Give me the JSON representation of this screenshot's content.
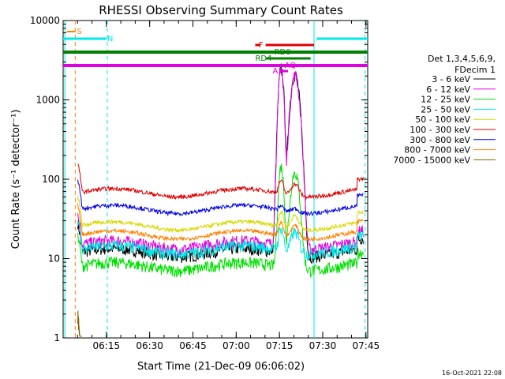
{
  "chart_data": {
    "type": "line",
    "title": "RHESSI Observing Summary Count Rates",
    "xlabel": "Start Time (21-Dec-09 06:06:02)",
    "ylabel": "Count Rate (s⁻¹ detector⁻¹)",
    "yscale": "log",
    "ylim": [
      1,
      10000
    ],
    "xlim_minutes": [
      6.0,
      7.76
    ],
    "x_ticks": [
      "06:15",
      "06:30",
      "06:45",
      "07:00",
      "07:15",
      "07:30",
      "07:45"
    ],
    "y_ticks": [
      "1",
      "10",
      "100",
      "1000",
      "10000"
    ],
    "legend_title": [
      "Det 1,3,4,5,6,9,",
      "FDecim 1"
    ],
    "legend_position": "right",
    "footer": "16-Oct-2021 22:08",
    "series": [
      {
        "name": "3 - 6 keV",
        "color": "#000000",
        "level": 12,
        "flare_peak": 2600
      },
      {
        "name": "6 - 12 keV",
        "color": "#e000e0",
        "level": 15,
        "flare_peak": 2500
      },
      {
        "name": "12 - 25 keV",
        "color": "#00e000",
        "level": 8,
        "flare_peak": 150
      },
      {
        "name": "25 - 50 keV",
        "color": "#00e8e8",
        "level": 13,
        "flare_peak": 25
      },
      {
        "name": "50 - 100 keV",
        "color": "#d8d800",
        "level": 26,
        "flare_peak": 40
      },
      {
        "name": "100 - 300 keV",
        "color": "#e00000",
        "level": 68,
        "flare_peak": 100
      },
      {
        "name": "300 - 800 keV",
        "color": "#0000e0",
        "level": 42,
        "flare_peak": 48
      },
      {
        "name": "800 - 7000 keV",
        "color": "#ff8000",
        "level": 20,
        "flare_peak": 30
      },
      {
        "name": "7000 - 15000 keV",
        "color": "#806000",
        "level": 1.8,
        "flare_peak": 1.8
      }
    ],
    "flag_bars": [
      {
        "label": "S",
        "color": "#ff8000",
        "y_row": 1
      },
      {
        "label": "N",
        "color": "#00e8e8",
        "y_row": 2
      },
      {
        "label": "F",
        "color": "#e00000",
        "y_row": 3
      },
      {
        "label": "RD0",
        "color": "#008000",
        "y_row": 4
      },
      {
        "label": "RD4",
        "color": "#008000",
        "y_row": 5
      },
      {
        "label": "AQ",
        "color": "#e000e0",
        "y_row": 6
      },
      {
        "label": "A1",
        "color": "#e000e0",
        "y_row": 7
      }
    ]
  }
}
